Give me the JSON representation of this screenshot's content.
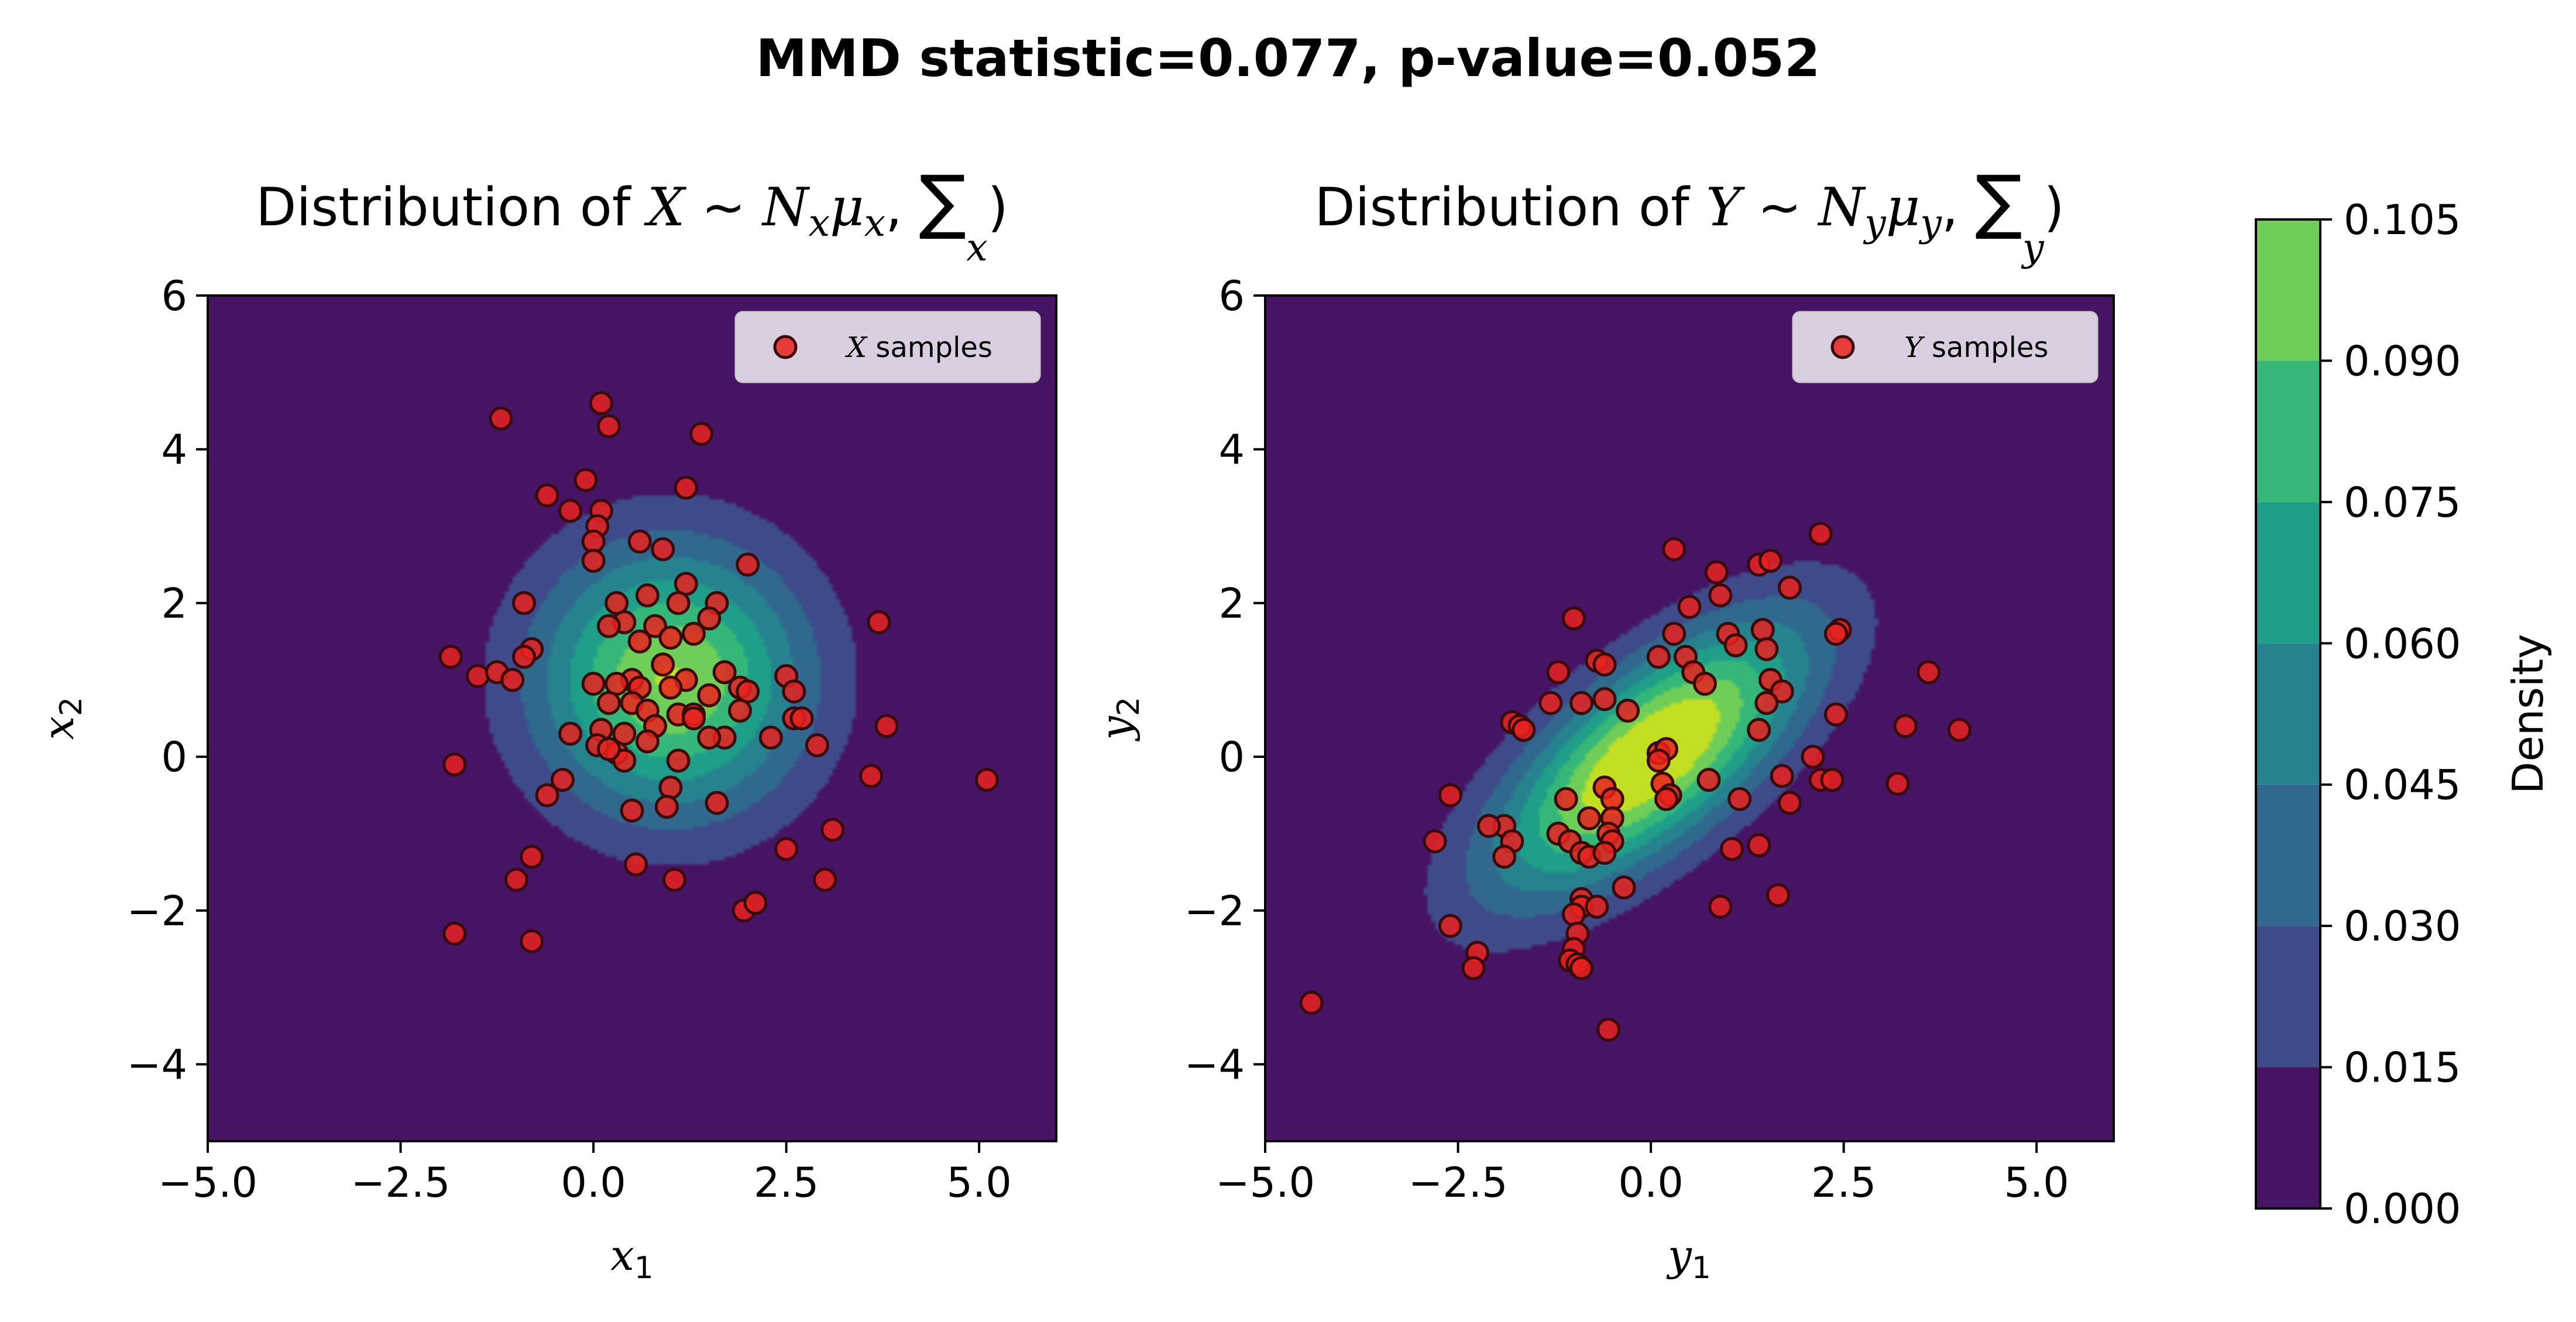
{
  "chart_data": {
    "suptitle": "MMD statistic=0.077, p-value=0.052",
    "shared": {
      "type": "contour+scatter",
      "xlim": [
        -5,
        6
      ],
      "ylim": [
        -5,
        6
      ],
      "xticks": [
        "−5.0",
        "−2.5",
        "0.0",
        "2.5",
        "5.0"
      ],
      "xtick_values": [
        -5,
        -2.5,
        0,
        2.5,
        5
      ],
      "yticks": [
        "−4",
        "−2",
        "0",
        "2",
        "4",
        "6"
      ],
      "ytick_values": [
        -4,
        -2,
        0,
        2,
        4,
        6
      ],
      "contour_levels": [
        0,
        0.015,
        0.03,
        0.045,
        0.06,
        0.075,
        0.09,
        0.105
      ],
      "contour_colors": [
        "#471365",
        "#3e4a89",
        "#31688e",
        "#26828e",
        "#1f9e89",
        "#35b779",
        "#6ece58",
        "#c2df23"
      ],
      "point_color": "#e8221f",
      "point_edge": "#3a0a0a"
    },
    "panels": [
      {
        "title": {
          "prefix": "Distribution of ",
          "var": "X",
          "tilde": " ~ ",
          "dist": "N",
          "dist_sub": "x",
          "mu": "μ",
          "mu_sub": "x",
          "sep": ", ",
          "sigma": "∑",
          "sigma_sub": "x",
          "close": ")"
        },
        "xlabel": {
          "var": "x",
          "sub": "1"
        },
        "ylabel": {
          "var": "x",
          "sub": "2"
        },
        "legend": {
          "var": "X",
          "text": " samples"
        },
        "mean": [
          1,
          1
        ],
        "cov": [
          [
            1.5,
            0
          ],
          [
            0,
            1.5
          ]
        ],
        "points": [
          [
            -1.2,
            4.4
          ],
          [
            0.1,
            4.6
          ],
          [
            0.2,
            4.3
          ],
          [
            1.4,
            4.2
          ],
          [
            -0.1,
            3.6
          ],
          [
            -0.6,
            3.4
          ],
          [
            -0.3,
            3.2
          ],
          [
            0.1,
            3.2
          ],
          [
            0.05,
            3.0
          ],
          [
            0.0,
            2.8
          ],
          [
            0.6,
            2.8
          ],
          [
            0.9,
            2.7
          ],
          [
            1.2,
            3.5
          ],
          [
            0.0,
            2.55
          ],
          [
            1.2,
            2.25
          ],
          [
            2.0,
            2.5
          ],
          [
            -0.9,
            2.0
          ],
          [
            0.3,
            2.0
          ],
          [
            0.7,
            2.1
          ],
          [
            1.1,
            2.0
          ],
          [
            1.6,
            2.0
          ],
          [
            3.7,
            1.75
          ],
          [
            0.4,
            1.75
          ],
          [
            0.8,
            1.7
          ],
          [
            1.0,
            1.55
          ],
          [
            1.5,
            1.8
          ],
          [
            0.2,
            1.7
          ],
          [
            0.6,
            1.5
          ],
          [
            -0.8,
            1.4
          ],
          [
            -0.9,
            1.3
          ],
          [
            1.3,
            1.6
          ],
          [
            -1.85,
            1.3
          ],
          [
            -1.5,
            1.05
          ],
          [
            -1.25,
            1.1
          ],
          [
            -1.05,
            1.0
          ],
          [
            0.5,
            1.0
          ],
          [
            0.9,
            1.2
          ],
          [
            1.2,
            1.0
          ],
          [
            1.7,
            1.1
          ],
          [
            1.9,
            0.9
          ],
          [
            2.0,
            0.85
          ],
          [
            2.5,
            1.05
          ],
          [
            2.6,
            0.85
          ],
          [
            0.0,
            0.95
          ],
          [
            0.3,
            0.95
          ],
          [
            0.6,
            0.9
          ],
          [
            1.0,
            0.9
          ],
          [
            0.2,
            0.7
          ],
          [
            0.5,
            0.7
          ],
          [
            0.7,
            0.6
          ],
          [
            1.1,
            0.55
          ],
          [
            1.3,
            0.55
          ],
          [
            1.5,
            0.8
          ],
          [
            1.9,
            0.6
          ],
          [
            2.6,
            0.5
          ],
          [
            2.7,
            0.5
          ],
          [
            3.8,
            0.4
          ],
          [
            -0.3,
            0.3
          ],
          [
            0.1,
            0.35
          ],
          [
            0.4,
            0.3
          ],
          [
            0.8,
            0.4
          ],
          [
            1.3,
            0.5
          ],
          [
            1.7,
            0.25
          ],
          [
            2.3,
            0.25
          ],
          [
            2.9,
            0.15
          ],
          [
            0.05,
            0.15
          ],
          [
            0.3,
            0.05
          ],
          [
            0.4,
            -0.05
          ],
          [
            0.2,
            0.1
          ],
          [
            0.7,
            0.2
          ],
          [
            -1.8,
            -0.1
          ],
          [
            1.1,
            -0.05
          ],
          [
            1.5,
            0.25
          ],
          [
            -0.4,
            -0.3
          ],
          [
            3.6,
            -0.25
          ],
          [
            5.1,
            -0.3
          ],
          [
            1.0,
            -0.4
          ],
          [
            -0.6,
            -0.5
          ],
          [
            0.5,
            -0.7
          ],
          [
            0.95,
            -0.65
          ],
          [
            1.6,
            -0.6
          ],
          [
            -0.8,
            -1.3
          ],
          [
            2.5,
            -1.2
          ],
          [
            3.1,
            -0.95
          ],
          [
            -1.0,
            -1.6
          ],
          [
            0.55,
            -1.4
          ],
          [
            1.05,
            -1.6
          ],
          [
            3.0,
            -1.6
          ],
          [
            1.95,
            -2.0
          ],
          [
            2.1,
            -1.9
          ],
          [
            -1.8,
            -2.3
          ],
          [
            -0.8,
            -2.4
          ]
        ]
      },
      {
        "title": {
          "prefix": "Distribution of ",
          "var": "Y",
          "tilde": " ~ ",
          "dist": "N",
          "dist_sub": "y",
          "mu": "μ",
          "mu_sub": "y",
          "sep": ", ",
          "sigma": "∑",
          "sigma_sub": "y",
          "close": ")"
        },
        "xlabel": {
          "var": "y",
          "sub": "1"
        },
        "ylabel": {
          "var": "y",
          "sub": "2"
        },
        "legend": {
          "var": "Y",
          "text": " samples"
        },
        "mean": [
          0,
          0
        ],
        "cov": [
          [
            2.0,
            1.2
          ],
          [
            1.2,
            1.5
          ]
        ],
        "points": [
          [
            0.3,
            2.7
          ],
          [
            2.2,
            2.9
          ],
          [
            1.4,
            2.5
          ],
          [
            1.55,
            2.55
          ],
          [
            0.85,
            2.4
          ],
          [
            1.8,
            2.2
          ],
          [
            0.9,
            2.1
          ],
          [
            0.5,
            1.95
          ],
          [
            -1.0,
            1.8
          ],
          [
            0.3,
            1.6
          ],
          [
            1.0,
            1.6
          ],
          [
            1.45,
            1.65
          ],
          [
            2.45,
            1.65
          ],
          [
            2.4,
            1.6
          ],
          [
            1.5,
            1.4
          ],
          [
            0.1,
            1.3
          ],
          [
            0.45,
            1.3
          ],
          [
            1.1,
            1.45
          ],
          [
            -0.7,
            1.25
          ],
          [
            -0.6,
            1.2
          ],
          [
            -1.2,
            1.1
          ],
          [
            0.55,
            1.1
          ],
          [
            0.7,
            0.95
          ],
          [
            3.6,
            1.1
          ],
          [
            1.55,
            1.0
          ],
          [
            1.7,
            0.85
          ],
          [
            -0.6,
            0.75
          ],
          [
            -0.9,
            0.7
          ],
          [
            -0.3,
            0.6
          ],
          [
            1.5,
            0.7
          ],
          [
            -1.3,
            0.7
          ],
          [
            2.4,
            0.55
          ],
          [
            -1.8,
            0.45
          ],
          [
            -1.7,
            0.4
          ],
          [
            -1.65,
            0.35
          ],
          [
            1.4,
            0.35
          ],
          [
            3.3,
            0.4
          ],
          [
            4.0,
            0.35
          ],
          [
            0.1,
            0.05
          ],
          [
            0.2,
            0.1
          ],
          [
            0.1,
            -0.05
          ],
          [
            2.1,
            0.0
          ],
          [
            1.7,
            -0.25
          ],
          [
            0.75,
            -0.3
          ],
          [
            0.15,
            -0.35
          ],
          [
            0.25,
            -0.5
          ],
          [
            0.2,
            -0.55
          ],
          [
            -1.1,
            -0.55
          ],
          [
            -0.6,
            -0.4
          ],
          [
            -0.5,
            -0.55
          ],
          [
            1.8,
            -0.6
          ],
          [
            1.15,
            -0.55
          ],
          [
            2.2,
            -0.3
          ],
          [
            2.35,
            -0.3
          ],
          [
            3.2,
            -0.35
          ],
          [
            -1.9,
            -0.9
          ],
          [
            -2.1,
            -0.9
          ],
          [
            -1.8,
            -1.1
          ],
          [
            -0.8,
            -0.8
          ],
          [
            -0.5,
            -0.8
          ],
          [
            -0.55,
            -1.0
          ],
          [
            -1.2,
            -1.0
          ],
          [
            -1.05,
            -1.1
          ],
          [
            -0.5,
            -1.1
          ],
          [
            -2.8,
            -1.1
          ],
          [
            -2.6,
            -0.5
          ],
          [
            -1.9,
            -1.3
          ],
          [
            -0.9,
            -1.25
          ],
          [
            -0.8,
            -1.3
          ],
          [
            -0.6,
            -1.25
          ],
          [
            1.4,
            -1.15
          ],
          [
            1.05,
            -1.2
          ],
          [
            -0.35,
            -1.7
          ],
          [
            -0.9,
            -1.85
          ],
          [
            -0.9,
            -1.95
          ],
          [
            -0.7,
            -1.95
          ],
          [
            -1.0,
            -2.05
          ],
          [
            0.9,
            -1.95
          ],
          [
            1.65,
            -1.8
          ],
          [
            -0.95,
            -2.3
          ],
          [
            -1.0,
            -2.5
          ],
          [
            -2.6,
            -2.2
          ],
          [
            -2.25,
            -2.55
          ],
          [
            -2.3,
            -2.75
          ],
          [
            -1.05,
            -2.65
          ],
          [
            -0.95,
            -2.7
          ],
          [
            -0.9,
            -2.75
          ],
          [
            -0.55,
            -3.55
          ],
          [
            -4.4,
            -3.2
          ]
        ]
      }
    ],
    "colorbar": {
      "label": "Density",
      "ticks": [
        "0.000",
        "0.015",
        "0.030",
        "0.045",
        "0.060",
        "0.075",
        "0.090",
        "0.105"
      ],
      "tick_values": [
        0,
        0.015,
        0.03,
        0.045,
        0.06,
        0.075,
        0.09,
        0.105
      ]
    }
  }
}
